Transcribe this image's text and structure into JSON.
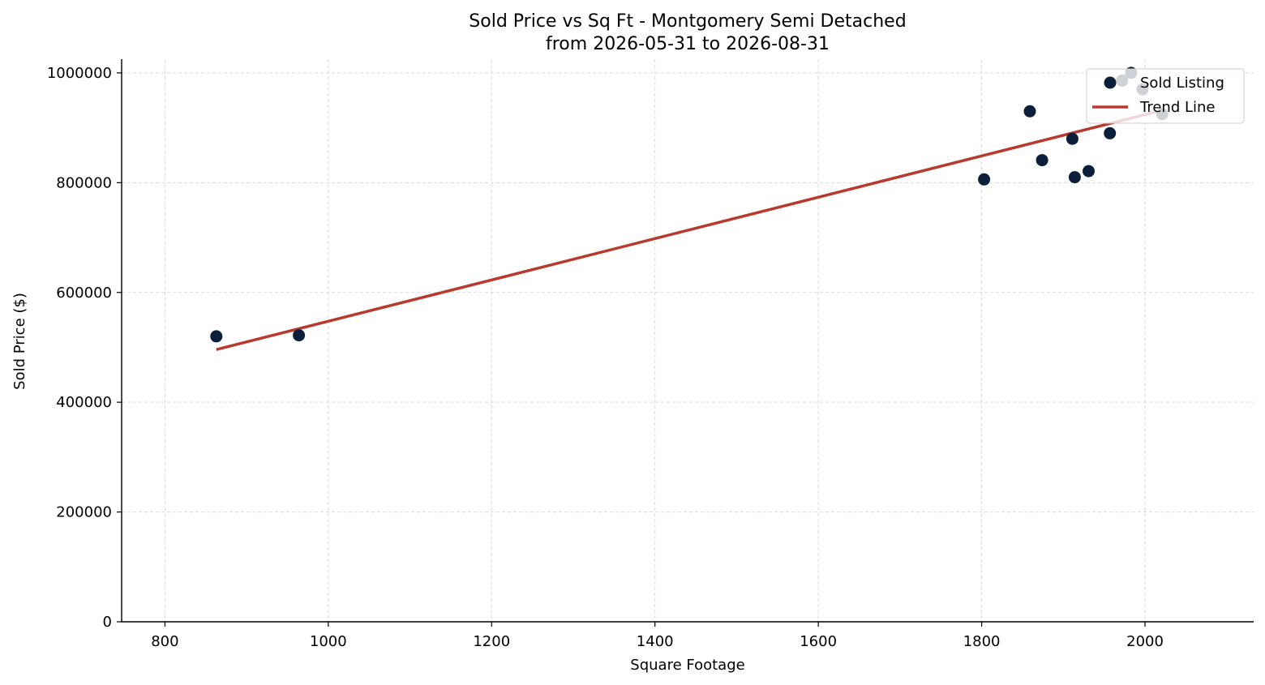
{
  "chart_data": {
    "type": "scatter",
    "title": "Sold Price vs Sq Ft - Montgomery Semi Detached",
    "subtitle": "from 2026-05-31 to 2026-08-31",
    "xlabel": "Square Footage",
    "ylabel": "Sold Price ($)",
    "xlim": [
      747,
      2133
    ],
    "ylim": [
      0,
      1025000
    ],
    "x_ticks": [
      800,
      1000,
      1200,
      1400,
      1600,
      1800,
      2000
    ],
    "y_ticks": [
      0,
      200000,
      400000,
      600000,
      800000,
      1000000
    ],
    "grid": true,
    "legend_position": "top-right",
    "series": [
      {
        "name": "Sold Listing",
        "kind": "scatter",
        "color": "#0b1f3a",
        "points": [
          {
            "x": 863,
            "y": 520000
          },
          {
            "x": 964,
            "y": 522000
          },
          {
            "x": 1803,
            "y": 806000
          },
          {
            "x": 1859,
            "y": 930000
          },
          {
            "x": 1874,
            "y": 841000
          },
          {
            "x": 1911,
            "y": 880000
          },
          {
            "x": 1914,
            "y": 810000
          },
          {
            "x": 1931,
            "y": 821000
          },
          {
            "x": 1957,
            "y": 890000
          },
          {
            "x": 1972,
            "y": 986000
          },
          {
            "x": 1983,
            "y": 1000000
          },
          {
            "x": 1997,
            "y": 970000
          },
          {
            "x": 2021,
            "y": 925000
          }
        ]
      },
      {
        "name": "Trend Line",
        "kind": "line",
        "color": "#b83a2e",
        "points": [
          {
            "x": 863,
            "y": 496000
          },
          {
            "x": 2021,
            "y": 932000
          }
        ]
      }
    ]
  }
}
